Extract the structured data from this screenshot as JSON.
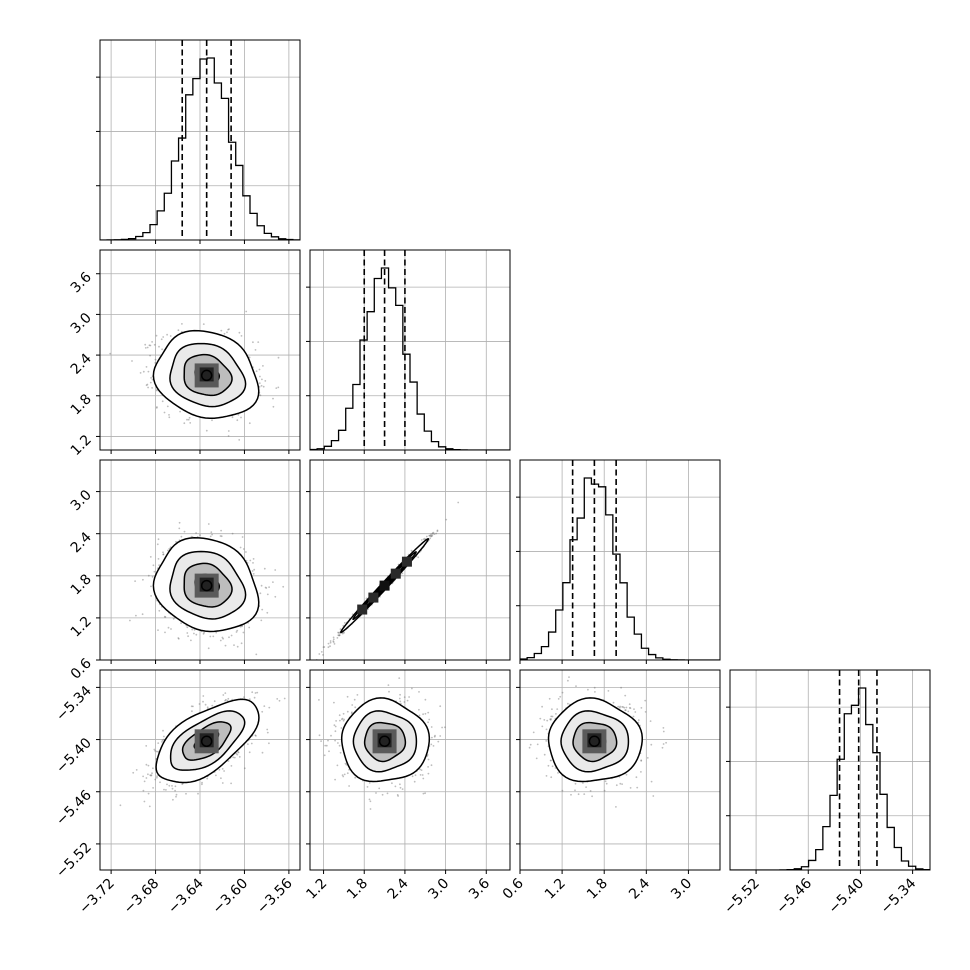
{
  "chart_data": {
    "type": "corner",
    "title": "",
    "grid": true,
    "quantile_lines": "dashed",
    "colors": {
      "ink": "#000000",
      "grid": "#b0b0b0",
      "points": "#6f6f6f"
    },
    "parameters": [
      {
        "range": [
          -3.73,
          -3.55
        ],
        "ticks": [
          -3.72,
          -3.68,
          -3.64,
          -3.6,
          -3.56
        ],
        "tick_labels": [
          "−3.72",
          "−3.68",
          "−3.64",
          "−3.60",
          "−3.56"
        ],
        "mean": -3.634,
        "sd": 0.0215,
        "quantiles": [
          -3.656,
          -3.634,
          -3.612
        ]
      },
      {
        "range": [
          1.0,
          3.95
        ],
        "ticks": [
          1.2,
          1.8,
          2.4,
          3.0,
          3.6
        ],
        "tick_labels": [
          "1.2",
          "1.8",
          "2.4",
          "3.0",
          "3.6"
        ],
        "mean": 2.1,
        "sd": 0.3,
        "quantiles": [
          1.8,
          2.1,
          2.4
        ]
      },
      {
        "range": [
          0.6,
          3.45
        ],
        "ticks": [
          0.6,
          1.2,
          1.8,
          2.4,
          3.0
        ],
        "tick_labels": [
          "0.6",
          "1.2",
          "1.8",
          "2.4",
          "3.0"
        ],
        "mean": 1.66,
        "sd": 0.31,
        "quantiles": [
          1.35,
          1.66,
          1.97
        ]
      },
      {
        "range": [
          -5.55,
          -5.32
        ],
        "ticks": [
          -5.52,
          -5.46,
          -5.4,
          -5.34
        ],
        "tick_labels": [
          "−5.52",
          "−5.46",
          "−5.40",
          "−5.34"
        ],
        "mean": -5.402,
        "sd": 0.022,
        "quantiles": [
          -5.424,
          -5.402,
          -5.381
        ]
      }
    ],
    "correlations": [
      [
        1.0,
        -0.15,
        -0.15,
        0.6
      ],
      [
        -0.15,
        1.0,
        0.995,
        0.0
      ],
      [
        -0.15,
        0.995,
        1.0,
        0.0
      ],
      [
        0.6,
        0.0,
        0.0,
        1.0
      ]
    ]
  }
}
